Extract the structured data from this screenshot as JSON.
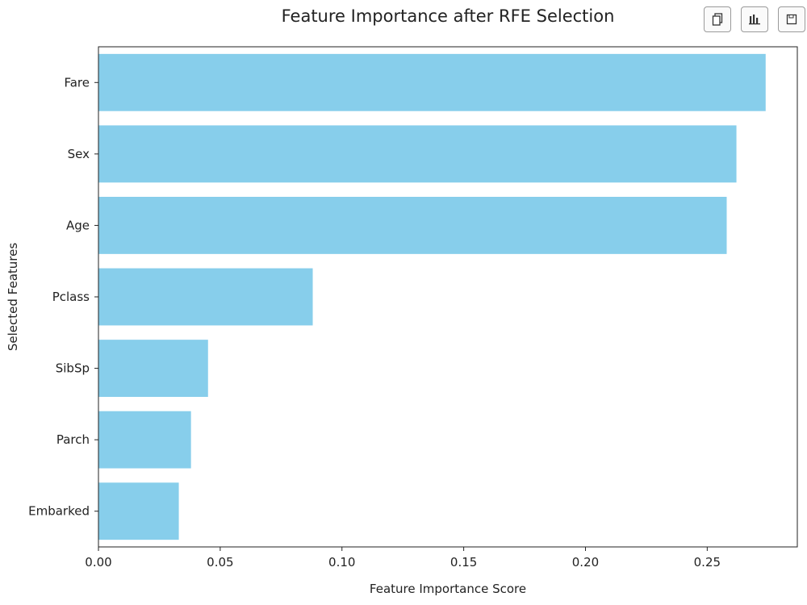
{
  "toolbar": {
    "buttons": [
      {
        "icon": "copy-icon"
      },
      {
        "icon": "bar-chart-icon"
      },
      {
        "icon": "save-icon"
      }
    ]
  },
  "chart_data": {
    "type": "bar",
    "orientation": "horizontal",
    "title": "Feature Importance after RFE Selection",
    "xlabel": "Feature Importance Score",
    "ylabel": "Selected Features",
    "categories": [
      "Fare",
      "Sex",
      "Age",
      "Pclass",
      "SibSp",
      "Parch",
      "Embarked"
    ],
    "values": [
      0.274,
      0.262,
      0.258,
      0.088,
      0.045,
      0.038,
      0.033
    ],
    "xlim": [
      0,
      0.287
    ],
    "xticks": [
      "0.00",
      "0.05",
      "0.10",
      "0.15",
      "0.20",
      "0.25"
    ],
    "xtick_values": [
      0,
      0.05,
      0.1,
      0.15,
      0.2,
      0.25
    ],
    "bar_color": "#87ceeb",
    "grid": false,
    "legend": "none"
  }
}
